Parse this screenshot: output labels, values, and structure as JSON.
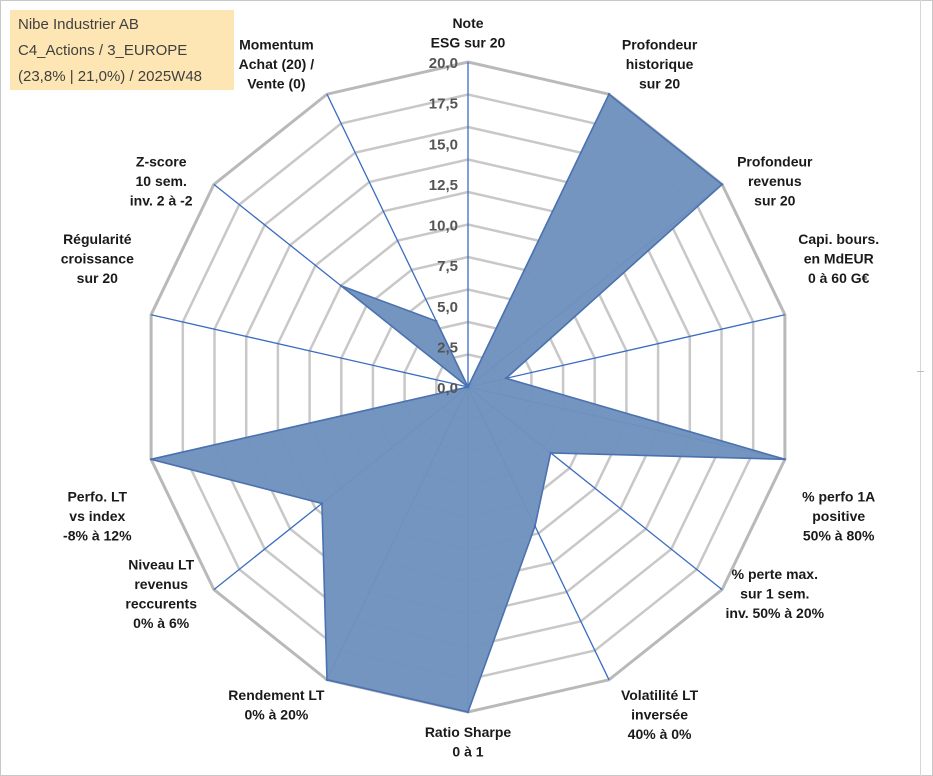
{
  "title_lines": [
    "Nibe Industrier AB",
    "C4_Actions / 3_EUROPE",
    "(23,8% | 21,0%) / 2025W48"
  ],
  "chart_data": {
    "type": "radar",
    "rmax": 20,
    "ticks": [
      "0,0",
      "2,5",
      "5,0",
      "7,5",
      "10,0",
      "12,5",
      "15,0",
      "17,5",
      "20,0"
    ],
    "tick_values": [
      0,
      2.5,
      5,
      7.5,
      10,
      12.5,
      15,
      17.5,
      20
    ],
    "grid_rings": [
      2,
      4,
      6,
      8,
      10,
      12,
      14,
      16,
      18,
      20
    ],
    "axes": [
      {
        "label": [
          "Note",
          "ESG sur 20"
        ]
      },
      {
        "label": [
          "Profondeur",
          "historique",
          "sur 20"
        ]
      },
      {
        "label": [
          "Profondeur",
          "revenus",
          "sur 20"
        ]
      },
      {
        "label": [
          "Capi. bours.",
          "en MdEUR",
          "0 à 60 G€"
        ]
      },
      {
        "label": [
          "% perfo 1A",
          "positive",
          "50% à 80%"
        ]
      },
      {
        "label": [
          "% perte max.",
          "sur 1 sem.",
          "inv. 50% à 20%"
        ]
      },
      {
        "label": [
          "Volatilité LT",
          "inversée",
          "40% à 0%"
        ]
      },
      {
        "label": [
          "Ratio Sharpe",
          "0 à 1"
        ]
      },
      {
        "label": [
          "Rendement LT",
          "0% à 20%"
        ]
      },
      {
        "label": [
          "Niveau LT",
          "revenus",
          "reccurents",
          "0% à 6%"
        ]
      },
      {
        "label": [
          "Perfo. LT",
          "vs index",
          "-8% à 12%"
        ]
      },
      {
        "label": [
          "Régularité",
          "croissance",
          "sur 20"
        ]
      },
      {
        "label": [
          "Z-score",
          "10 sem.",
          "inv. 2 à -2"
        ]
      },
      {
        "label": [
          "Momentum",
          "Achat (20) /",
          "Vente (0)"
        ]
      }
    ],
    "series": [
      {
        "values": [
          0,
          20,
          20,
          2.4,
          20,
          6.5,
          9.5,
          20,
          20,
          11.5,
          20,
          0,
          10,
          4.5
        ],
        "color": "#7092be",
        "stroke": "#4b72b0"
      }
    ],
    "grid": true,
    "legend": "none"
  }
}
